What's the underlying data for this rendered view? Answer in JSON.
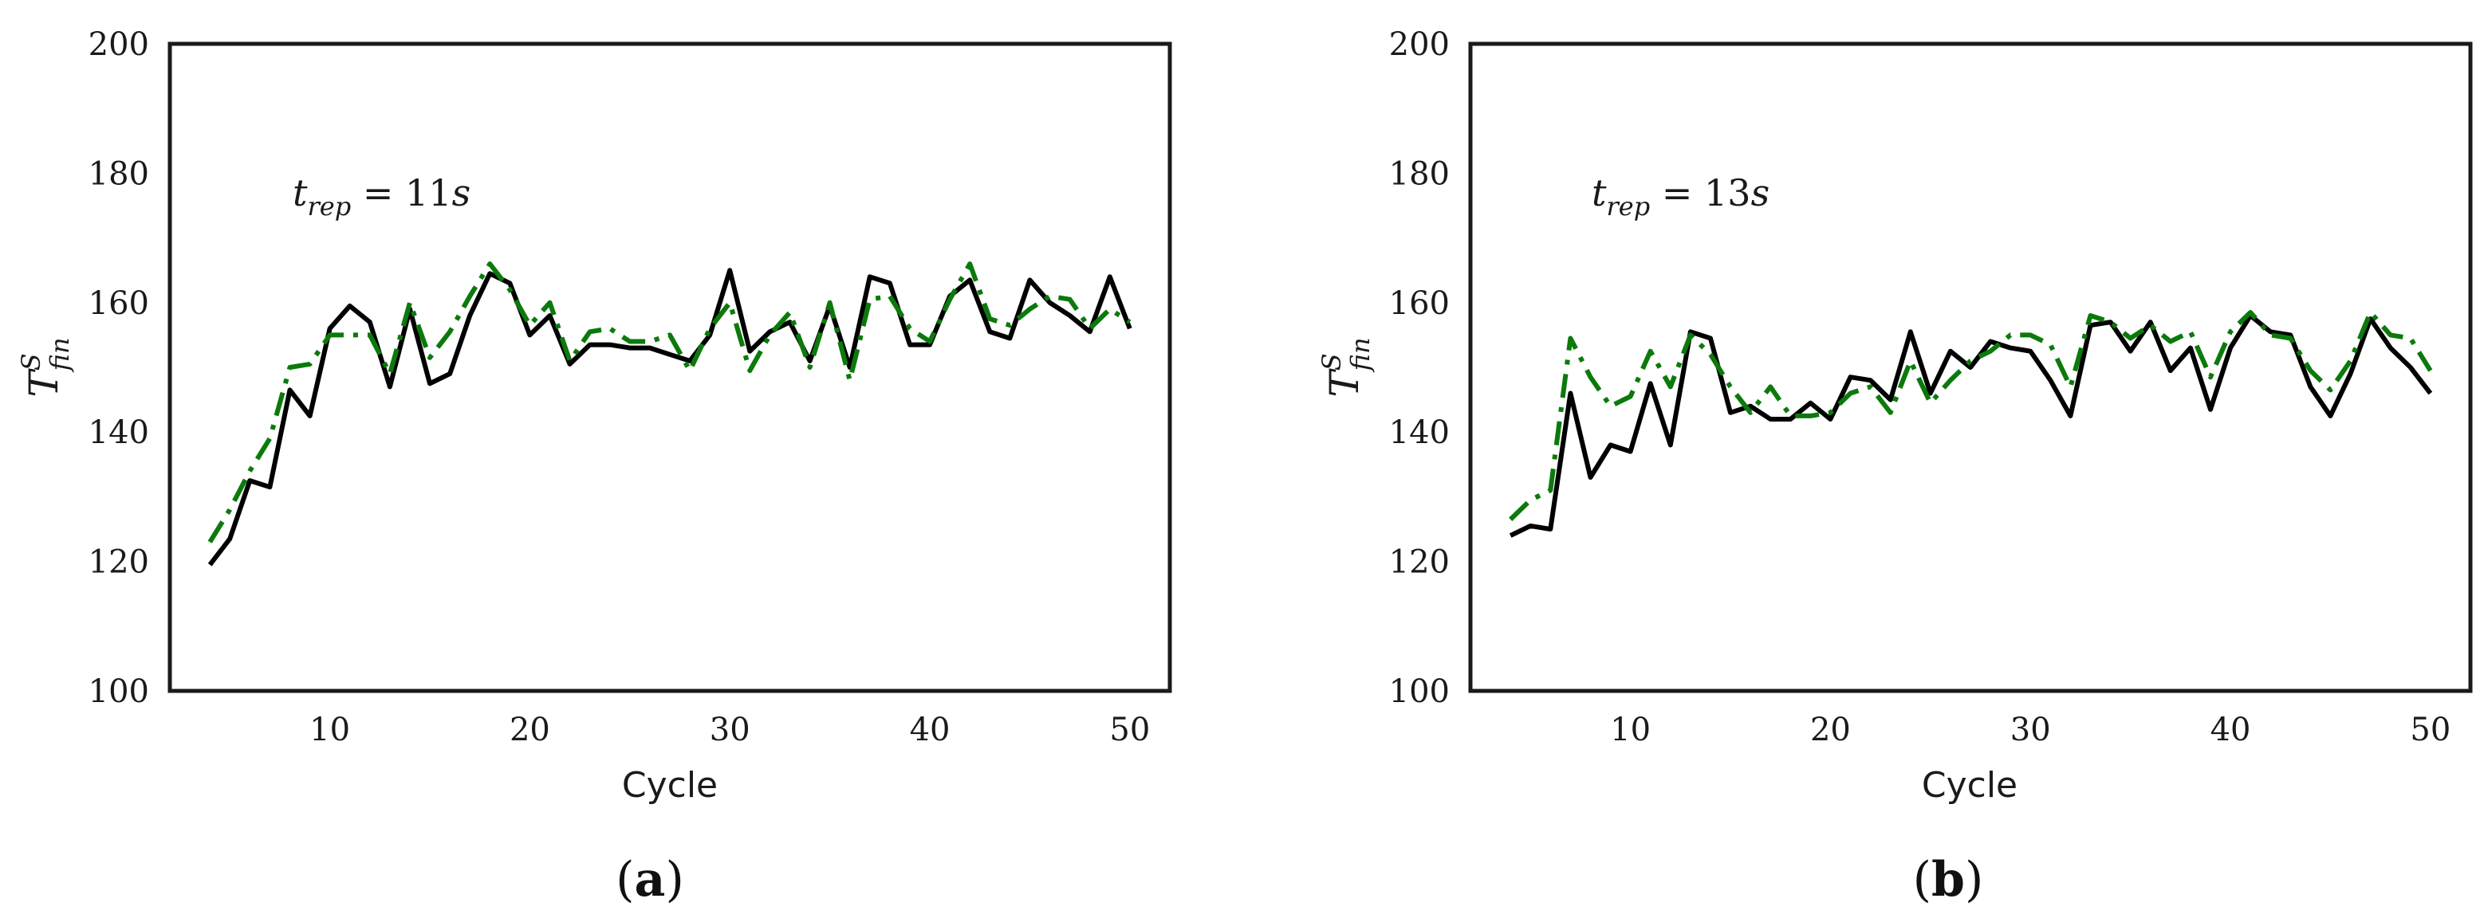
{
  "chart_data": [
    {
      "type": "line",
      "panel_label": "a",
      "xlabel": "Cycle",
      "ylabel": {
        "base": "T",
        "sup": "S",
        "sub": "fin"
      },
      "annotation": {
        "var": "t",
        "sub": "rep",
        "eq": " = ",
        "value": "11",
        "unit": "s"
      },
      "xlim": [
        2,
        52
      ],
      "ylim": [
        100,
        200
      ],
      "xticks": [
        10,
        20,
        30,
        40,
        50
      ],
      "yticks": [
        100,
        120,
        140,
        160,
        180,
        200
      ],
      "grid": false,
      "x": [
        4,
        5,
        6,
        7,
        8,
        9,
        10,
        11,
        12,
        13,
        14,
        15,
        16,
        17,
        18,
        19,
        20,
        21,
        22,
        23,
        24,
        25,
        26,
        27,
        28,
        29,
        30,
        31,
        32,
        33,
        34,
        35,
        36,
        37,
        38,
        39,
        40,
        41,
        42,
        43,
        44,
        45,
        46,
        47,
        48,
        49,
        50
      ],
      "series": [
        {
          "color": "#000000",
          "style": "solid",
          "values": [
            119.5,
            123.5,
            132.5,
            131.5,
            146.5,
            142.5,
            156,
            159.5,
            157,
            147,
            159,
            147.5,
            149,
            158,
            164.5,
            163,
            155,
            158,
            150.5,
            153.5,
            153.5,
            153,
            153,
            152,
            151,
            155,
            165,
            152.5,
            155.5,
            157,
            151,
            159.5,
            150,
            164,
            163,
            153.5,
            153.5,
            161,
            163.5,
            155.5,
            154.5,
            163.5,
            160,
            158,
            155.5,
            164,
            156
          ]
        },
        {
          "color": "#0b7a0b",
          "style": "dashdot",
          "values": [
            123,
            128,
            134,
            139,
            150,
            150.5,
            155,
            155,
            155,
            149,
            160,
            151.5,
            155.5,
            161,
            166,
            162,
            156.5,
            160,
            151,
            155.5,
            156,
            154,
            154,
            155,
            149.5,
            156,
            160,
            149.5,
            155,
            158.5,
            150,
            160,
            148,
            160.5,
            161,
            156,
            154,
            160.5,
            166,
            157.5,
            156.5,
            159,
            161,
            160.5,
            156,
            159,
            157
          ]
        }
      ]
    },
    {
      "type": "line",
      "panel_label": "b",
      "xlabel": "Cycle",
      "ylabel": {
        "base": "T",
        "sup": "S",
        "sub": "fin"
      },
      "annotation": {
        "var": "t",
        "sub": "rep",
        "eq": " = ",
        "value": "13",
        "unit": "s"
      },
      "xlim": [
        2,
        52
      ],
      "ylim": [
        100,
        200
      ],
      "xticks": [
        10,
        20,
        30,
        40,
        50
      ],
      "yticks": [
        100,
        120,
        140,
        160,
        180,
        200
      ],
      "grid": false,
      "x": [
        4,
        5,
        6,
        7,
        8,
        9,
        10,
        11,
        12,
        13,
        14,
        15,
        16,
        17,
        18,
        19,
        20,
        21,
        22,
        23,
        24,
        25,
        26,
        27,
        28,
        29,
        30,
        31,
        32,
        33,
        34,
        35,
        36,
        37,
        38,
        39,
        40,
        41,
        42,
        43,
        44,
        45,
        46,
        47,
        48,
        49,
        50
      ],
      "series": [
        {
          "color": "#000000",
          "style": "solid",
          "values": [
            124,
            125.5,
            125,
            146,
            133,
            138,
            137,
            147.5,
            138,
            155.5,
            154.5,
            143,
            144,
            142,
            142,
            144.5,
            142,
            148.5,
            148,
            145,
            155.5,
            146,
            152.5,
            150,
            154,
            153,
            152.5,
            148,
            142.5,
            156.5,
            157,
            152.5,
            157,
            149.5,
            153,
            143.5,
            153,
            158,
            155.5,
            155,
            147,
            142.5,
            149,
            157.5,
            153,
            150,
            146
          ]
        },
        {
          "color": "#0b7a0b",
          "style": "dashdot",
          "values": [
            126.5,
            129.5,
            131,
            154.5,
            148.5,
            144,
            145.5,
            152.5,
            147,
            155,
            152,
            147,
            143,
            147,
            142.5,
            142.5,
            143,
            146,
            147,
            143,
            151,
            144.5,
            148,
            151,
            152.5,
            155,
            155,
            153.5,
            147,
            158,
            157,
            154.5,
            156.5,
            154,
            155.5,
            148.5,
            155.5,
            158.5,
            155,
            154.5,
            149.5,
            146.5,
            151,
            158.5,
            155,
            154.5,
            149.5
          ]
        }
      ]
    }
  ]
}
